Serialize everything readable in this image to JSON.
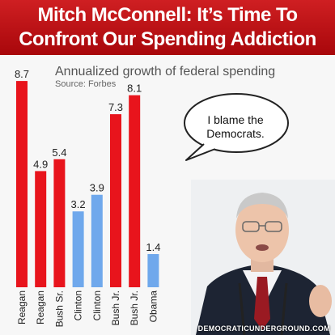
{
  "header": {
    "line1": "Mitch McConnell: It’s Time To",
    "line2": "Confront Our Spending Addiction"
  },
  "chart_data": {
    "type": "bar",
    "title": "Annualized growth of federal spending",
    "subtitle": "Source: Forbes",
    "categories": [
      "Reagan",
      "Reagan",
      "Bush Sr.",
      "Clinton",
      "Clinton",
      "Bush Jr.",
      "Bush Jr.",
      "Obama"
    ],
    "values": [
      8.7,
      4.9,
      5.4,
      3.2,
      3.9,
      7.3,
      8.1,
      1.4
    ],
    "bar_colors": [
      "#e8141c",
      "#e8141c",
      "#e8141c",
      "#6fa8ec",
      "#6fa8ec",
      "#e8141c",
      "#e8141c",
      "#6fa8ec"
    ],
    "ylim": [
      0,
      9
    ],
    "xlabel": "",
    "ylabel": "",
    "grid": false,
    "legend": "none"
  },
  "speech_bubble": {
    "text": "I blame the Democrats."
  },
  "watermark": "DEMOCRATICUNDERGROUND.COM",
  "colors": {
    "banner": "#c0151a",
    "republican": "#e8141c",
    "democrat": "#6fa8ec"
  }
}
